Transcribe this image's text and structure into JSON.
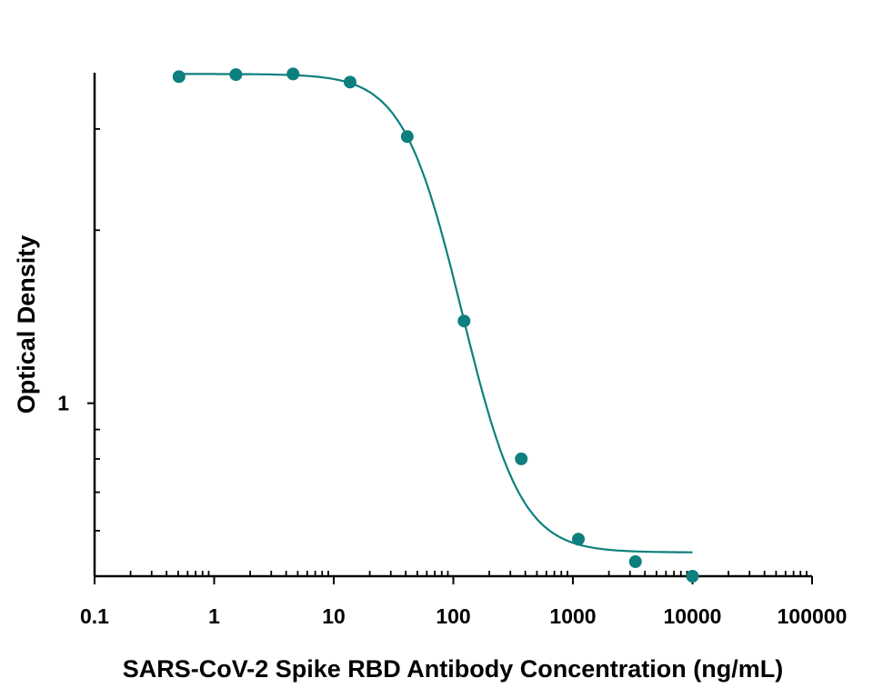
{
  "chart_data": {
    "type": "scatter",
    "xlabel": "SARS-CoV-2 Spike RBD Antibody Concentration (ng/mL)",
    "ylabel": "Optical Density",
    "xscale": "log",
    "yscale": "log",
    "xlim": [
      0.1,
      100000
    ],
    "ylim": [
      0.5,
      3.8
    ],
    "xticks": [
      "0.1",
      "1",
      "10",
      "100",
      "1000",
      "10000",
      "100000"
    ],
    "yticks": [
      "1"
    ],
    "grid": false,
    "legend": "none",
    "color": "#0e7f7f",
    "series": [
      {
        "x": [
          0.508,
          1.52,
          4.57,
          13.7,
          41.2,
          123,
          370,
          1111,
          3333,
          10000
        ],
        "y": [
          3.7,
          3.73,
          3.74,
          3.62,
          2.91,
          1.39,
          0.8,
          0.58,
          0.53,
          0.5
        ]
      }
    ],
    "fit": {
      "model": "4PL",
      "top": 3.74,
      "bottom": 0.55,
      "ec50": 71.5,
      "hill": 1.89,
      "x_range": [
        0.5,
        10000
      ]
    }
  }
}
